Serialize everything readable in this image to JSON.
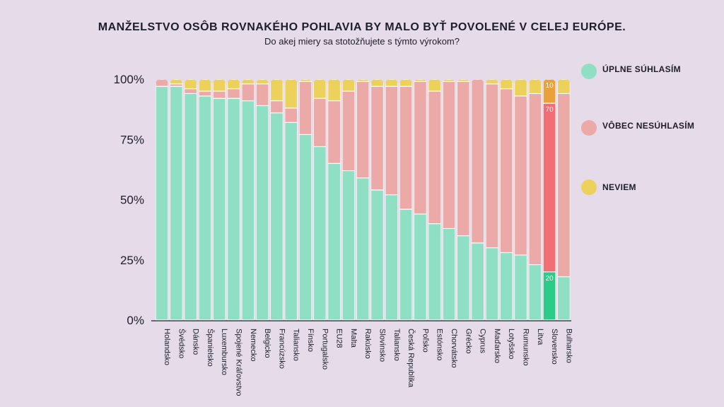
{
  "chart_data": {
    "type": "bar",
    "stacked": true,
    "title": "MANŽELSTVO OSÔB ROVNAKÉHO POHLAVIA BY MALO BYŤ POVOLENÉ V CELEJ EURÓPE.",
    "subtitle": "Do akej miery sa stotožňujete s týmto výrokom?",
    "ylim": [
      0,
      100
    ],
    "yticks": [
      "0%",
      "25%",
      "50%",
      "75%",
      "100%"
    ],
    "categories": [
      "Holandsko",
      "Švédsko",
      "Dánsko",
      "Španielsko",
      "Luxembursko",
      "Spojené Kráľovstvo",
      "Nemecko",
      "Belgicko",
      "Francúzsko",
      "Taliansko",
      "Fínsko",
      "Portugalsko",
      "EU28",
      "Malta",
      "Rakúsko",
      "Slovinsko",
      "Taliansko",
      "Česká Republika",
      "Poľsko",
      "Estónsko",
      "Chorvátsko",
      "Grécko",
      "Cyprus",
      "Maďarsko",
      "Lotyšsko",
      "Rumunsko",
      "Litva",
      "Slovensko",
      "Bulharsko"
    ],
    "series": [
      {
        "name": "ÚPLNE SÚHLASÍM",
        "color": "#8fdfc4",
        "values": [
          97,
          97,
          94,
          93,
          92,
          92,
          91,
          89,
          86,
          82,
          77,
          72,
          65,
          62,
          59,
          54,
          52,
          46,
          44,
          40,
          38,
          35,
          32,
          30,
          28,
          27,
          23,
          20,
          18
        ]
      },
      {
        "name": "VÔBEC NESÚHLASÍM",
        "color": "#eba9a8",
        "values": [
          3,
          1,
          2,
          2,
          3,
          4,
          7,
          9,
          5,
          6,
          22,
          20,
          26,
          33,
          40,
          43,
          45,
          51,
          55,
          55,
          61,
          64,
          68,
          68,
          68,
          66,
          71,
          70,
          76
        ]
      },
      {
        "name": "NEVIEM",
        "color": "#ecd15a",
        "values": [
          0,
          2,
          4,
          5,
          5,
          4,
          2,
          2,
          9,
          12,
          1,
          8,
          9,
          5,
          1,
          3,
          3,
          3,
          1,
          5,
          1,
          1,
          0,
          2,
          4,
          7,
          6,
          10,
          6
        ]
      }
    ],
    "highlight": {
      "category": "Slovensko",
      "colors": [
        "#2bcc8a",
        "#f26e75",
        "#e9a13b"
      ],
      "labels": [
        "20",
        "70",
        "10"
      ]
    },
    "legend_position": "right",
    "grid": false
  }
}
